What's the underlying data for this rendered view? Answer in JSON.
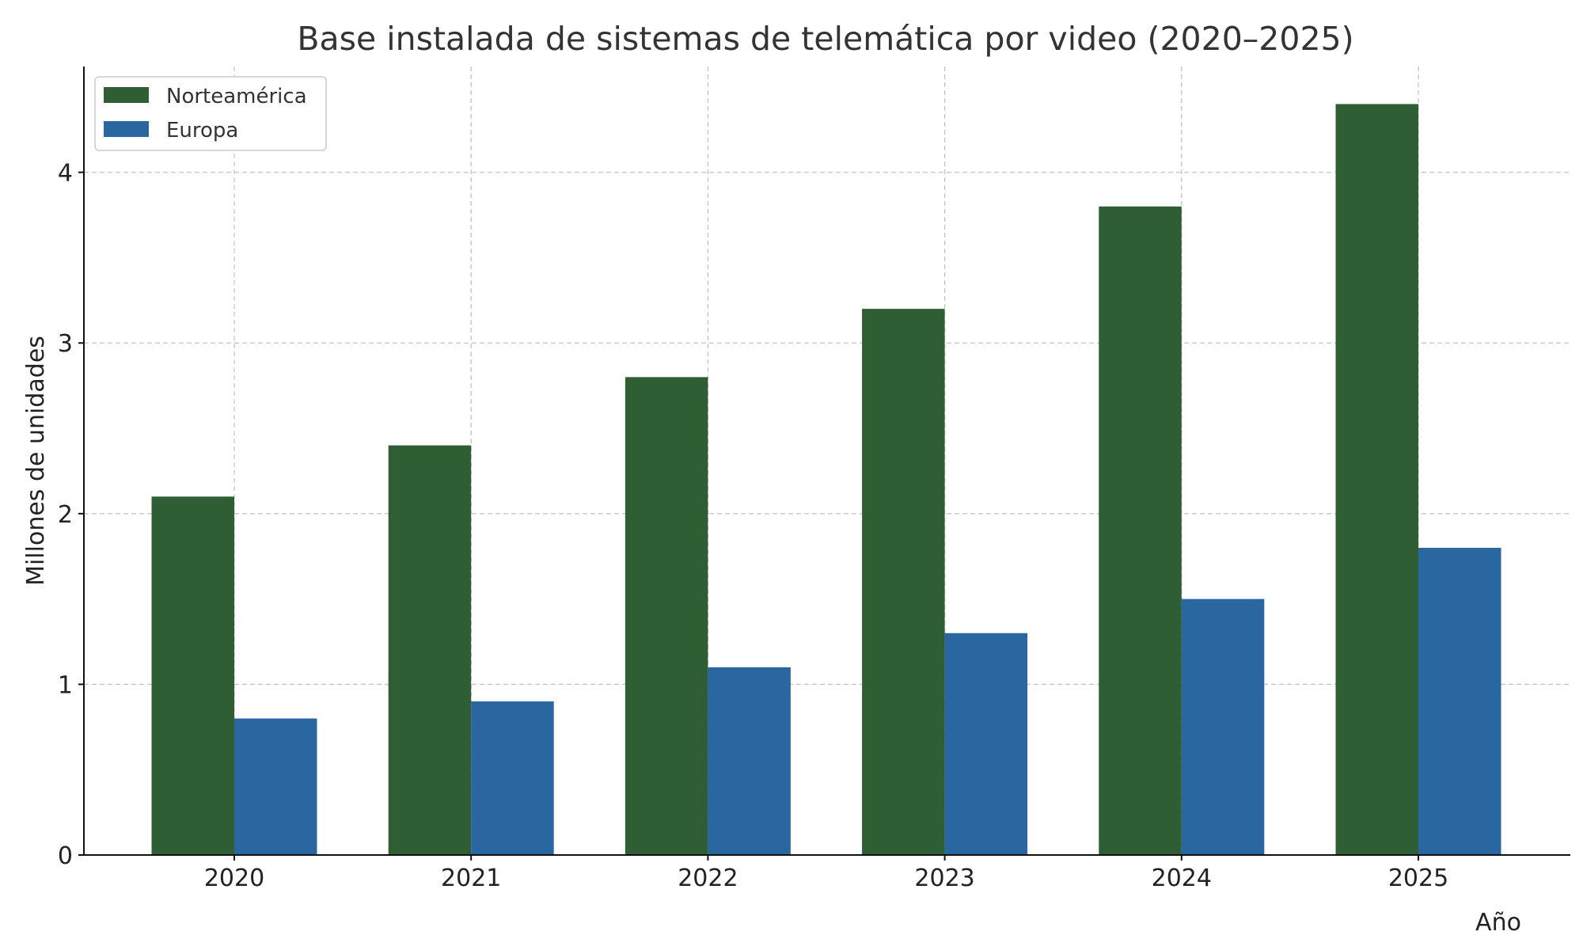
{
  "chart_data": {
    "type": "bar",
    "title": "Base instalada de sistemas de telemática por video (2020–2025)",
    "xlabel": "Año",
    "ylabel": "Millones de unidades",
    "categories": [
      "2020",
      "2021",
      "2022",
      "2023",
      "2024",
      "2025"
    ],
    "series": [
      {
        "name": "Norteamérica",
        "color": "#2f5d34",
        "values": [
          2.1,
          2.4,
          2.8,
          3.2,
          3.8,
          4.4
        ]
      },
      {
        "name": "Europa",
        "color": "#2a67a0",
        "values": [
          0.8,
          0.9,
          1.1,
          1.3,
          1.5,
          1.8
        ]
      }
    ],
    "ylim": [
      0,
      4.62
    ],
    "yticks": [
      "0",
      "1",
      "2",
      "3",
      "4"
    ],
    "grid": true,
    "legend_position": "top-left"
  }
}
